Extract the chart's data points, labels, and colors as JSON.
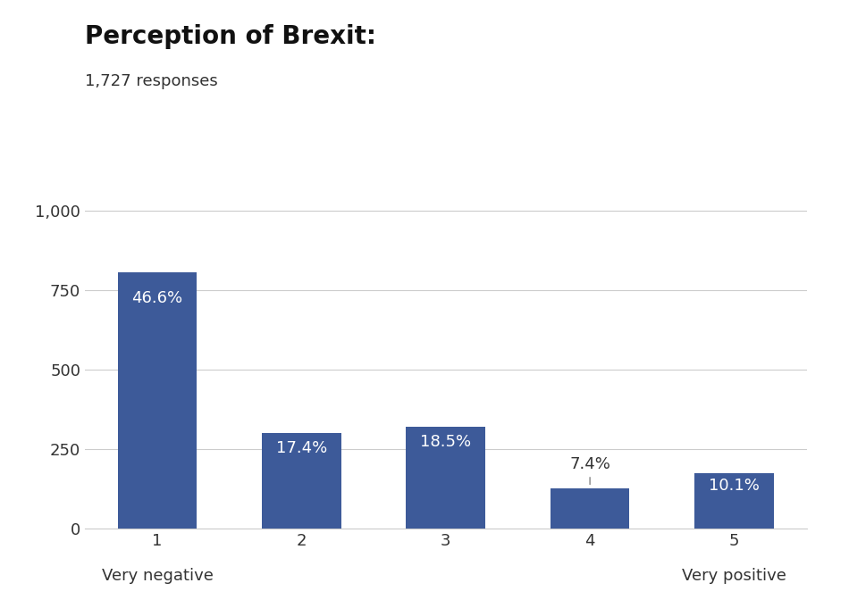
{
  "title": "Perception of Brexit:",
  "subtitle": "1,727 responses",
  "categories": [
    "1",
    "2",
    "3",
    "4",
    "5"
  ],
  "values": [
    804.8,
    300.5,
    319.5,
    127.8,
    174.4
  ],
  "percentages": [
    "46.6%",
    "17.4%",
    "18.5%",
    "7.4%",
    "10.1%"
  ],
  "bar_color": "#3D5A99",
  "ylim": [
    0,
    1050
  ],
  "yticks": [
    0,
    250,
    500,
    750,
    1000
  ],
  "background_color": "#ffffff",
  "title_fontsize": 20,
  "subtitle_fontsize": 13,
  "label_fontsize": 13,
  "tick_fontsize": 13,
  "annotation_fontsize": 13
}
